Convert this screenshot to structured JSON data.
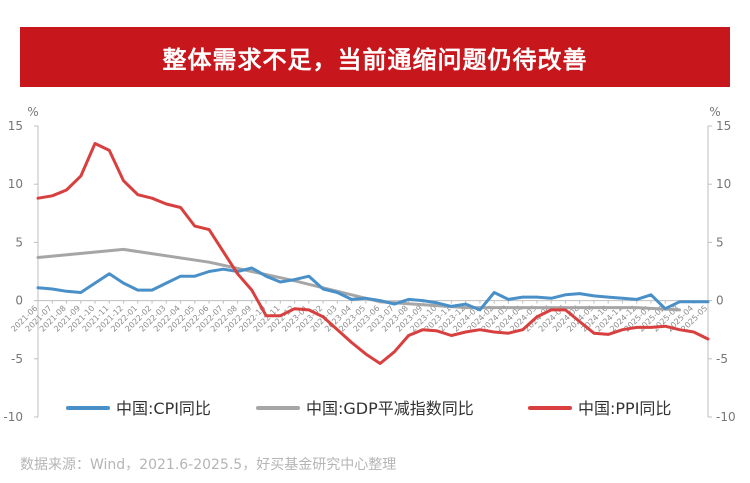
{
  "header": {
    "title": "整体需求不足，当前通缩问题仍待改善"
  },
  "footer": {
    "source": "数据来源：Wind，2021.6-2025.5，好买基金研究中心整理"
  },
  "chart_data": {
    "type": "line",
    "title": "整体需求不足，当前通缩问题仍待改善",
    "left_unit": "%",
    "right_unit": "%",
    "ylim": [
      -10,
      15
    ],
    "yticks": [
      15,
      10,
      5,
      0,
      -5,
      -10
    ],
    "grid": false,
    "legend_position": "bottom",
    "x": [
      "2021-06",
      "2021-07",
      "2021-08",
      "2021-09",
      "2021-10",
      "2021-11",
      "2021-12",
      "2022-01",
      "2022-02",
      "2022-03",
      "2022-04",
      "2022-05",
      "2022-06",
      "2022-07",
      "2022-08",
      "2022-09",
      "2022-10",
      "2022-11",
      "2022-12",
      "2023-01",
      "2023-02",
      "2023-03",
      "2023-04",
      "2023-05",
      "2023-06",
      "2023-07",
      "2023-08",
      "2023-09",
      "2023-10",
      "2023-11",
      "2023-12",
      "2024-01",
      "2024-02",
      "2024-03",
      "2024-04",
      "2024-05",
      "2024-06",
      "2024-07",
      "2024-08",
      "2024-09",
      "2024-10",
      "2024-11",
      "2024-12",
      "2025-01",
      "2025-02",
      "2025-03",
      "2025-04",
      "2025-05"
    ],
    "series": [
      {
        "name": "中国:CPI同比",
        "color": "#4a90c8",
        "values": [
          1.1,
          1.0,
          0.8,
          0.7,
          1.5,
          2.3,
          1.5,
          0.9,
          0.9,
          1.5,
          2.1,
          2.1,
          2.5,
          2.7,
          2.5,
          2.8,
          2.1,
          1.6,
          1.8,
          2.1,
          1.0,
          0.7,
          0.1,
          0.2,
          0.0,
          -0.3,
          0.1,
          0.0,
          -0.2,
          -0.5,
          -0.3,
          -0.8,
          0.7,
          0.1,
          0.3,
          0.3,
          0.2,
          0.5,
          0.6,
          0.4,
          0.3,
          0.2,
          0.1,
          0.5,
          -0.7,
          -0.1,
          -0.1,
          -0.1
        ]
      },
      {
        "name": "中国:GDP平减指数同比",
        "color": "#a6a6a6",
        "x": [
          "2021-06",
          "2021-12",
          "2022-06",
          "2022-12",
          "2023-06",
          "2023-12",
          "2024-06",
          "2024-12",
          "2025-03"
        ],
        "values": [
          3.7,
          4.4,
          3.3,
          1.7,
          -0.1,
          -0.6,
          -0.6,
          -0.6,
          -0.8
        ]
      },
      {
        "name": "中国:PPI同比",
        "color": "#d8403f",
        "values": [
          8.8,
          9.0,
          9.5,
          10.7,
          13.5,
          12.9,
          10.3,
          9.1,
          8.8,
          8.3,
          8.0,
          6.4,
          6.1,
          4.2,
          2.3,
          0.9,
          -1.3,
          -1.3,
          -0.7,
          -0.8,
          -1.4,
          -2.5,
          -3.6,
          -4.6,
          -5.4,
          -4.4,
          -3.0,
          -2.5,
          -2.6,
          -3.0,
          -2.7,
          -2.5,
          -2.7,
          -2.8,
          -2.5,
          -1.4,
          -0.8,
          -0.8,
          -1.8,
          -2.8,
          -2.9,
          -2.5,
          -2.3,
          -2.3,
          -2.2,
          -2.5,
          -2.7,
          -3.3
        ]
      }
    ]
  }
}
